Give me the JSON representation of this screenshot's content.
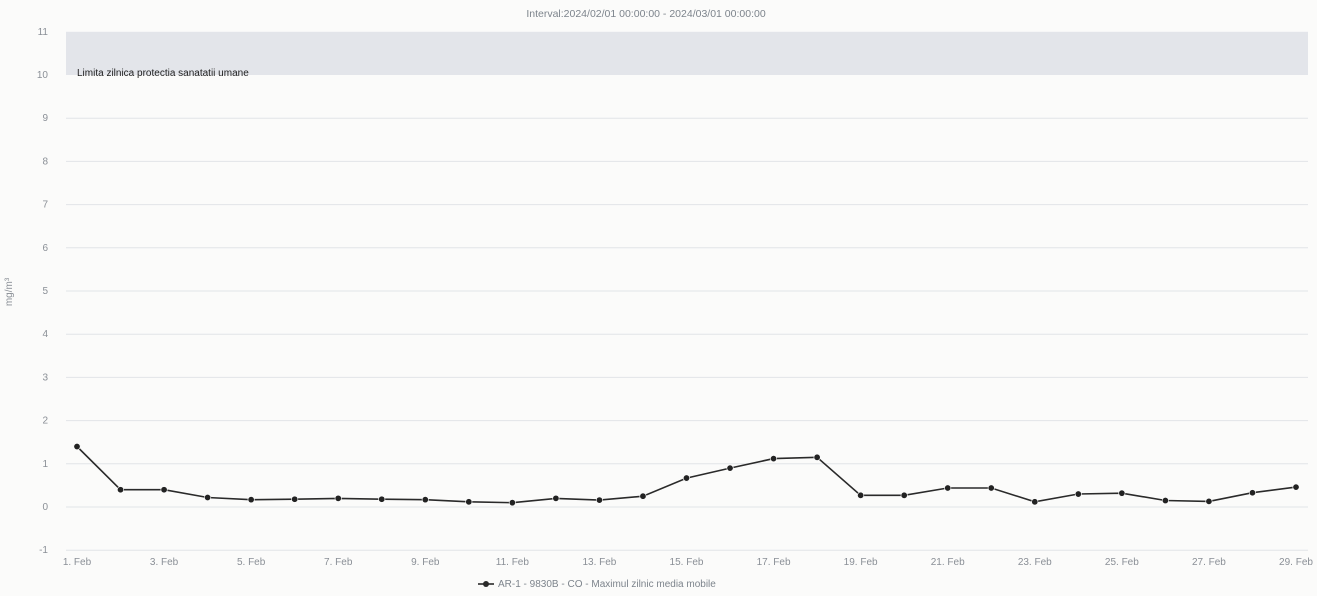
{
  "chart_data": {
    "type": "line",
    "title": "Interval:2024/02/01 00:00:00 - 2024/03/01 00:00:00",
    "ylabel": "mg/m³",
    "ylim": [
      -1,
      11
    ],
    "yticks": [
      -1,
      0,
      1,
      2,
      3,
      4,
      5,
      6,
      7,
      8,
      9,
      10,
      11
    ],
    "x_label_indices": [
      0,
      2,
      4,
      6,
      8,
      10,
      12,
      14,
      16,
      18,
      20,
      22,
      24,
      26,
      28
    ],
    "x": [
      "1. Feb",
      "2. Feb",
      "3. Feb",
      "4. Feb",
      "5. Feb",
      "6. Feb",
      "7. Feb",
      "8. Feb",
      "9. Feb",
      "10. Feb",
      "11. Feb",
      "12. Feb",
      "13. Feb",
      "14. Feb",
      "15. Feb",
      "16. Feb",
      "17. Feb",
      "18. Feb",
      "19. Feb",
      "20. Feb",
      "21. Feb",
      "22. Feb",
      "23. Feb",
      "24. Feb",
      "25. Feb",
      "26. Feb",
      "27. Feb",
      "28. Feb",
      "29. Feb"
    ],
    "series": [
      {
        "name": "AR-1 - 9830B - CO - Maximul zilnic media mobile",
        "color": "#2a2a2a",
        "values": [
          1.4,
          0.4,
          0.4,
          0.22,
          0.17,
          0.18,
          0.2,
          0.18,
          0.17,
          0.12,
          0.1,
          0.2,
          0.16,
          0.25,
          0.67,
          0.9,
          1.12,
          1.15,
          0.27,
          0.27,
          0.44,
          0.44,
          0.12,
          0.3,
          0.32,
          0.15,
          0.13,
          0.33,
          0.46
        ]
      }
    ],
    "threshold_band": {
      "label": "Limita zilnica protectia sanatatii umane",
      "from": 10,
      "to": 11,
      "color": "#e3e5ea"
    },
    "legend_position": "bottom-center",
    "grid": true
  }
}
